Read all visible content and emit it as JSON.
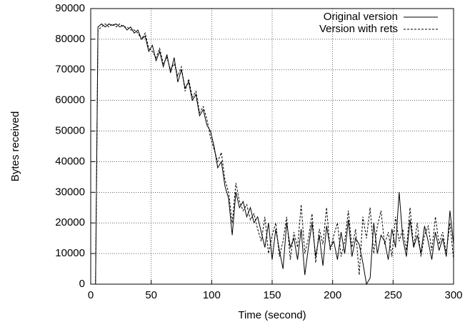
{
  "chart_data": {
    "type": "line",
    "xlabel": "Time (second)",
    "ylabel": "Bytes received",
    "x": [
      3,
      4,
      6,
      9,
      12,
      15,
      18,
      21,
      24,
      27,
      30,
      33,
      36,
      39,
      42,
      45,
      48,
      51,
      54,
      57,
      60,
      63,
      66,
      69,
      72,
      75,
      78,
      81,
      84,
      87,
      90,
      93,
      96,
      99,
      102,
      105,
      108,
      111,
      114,
      117,
      120,
      123,
      126,
      129,
      132,
      135,
      138,
      141,
      144,
      147,
      150,
      153,
      156,
      159,
      162,
      165,
      168,
      171,
      174,
      177,
      180,
      183,
      186,
      189,
      192,
      195,
      198,
      201,
      204,
      207,
      210,
      213,
      216,
      219,
      222,
      225,
      228,
      231,
      234,
      237,
      240,
      243,
      246,
      249,
      252,
      255,
      258,
      261,
      264,
      267,
      270,
      273,
      276,
      279,
      282,
      285,
      288,
      291,
      294,
      297,
      300
    ],
    "series": [
      {
        "name": "Original version",
        "color": "#000000",
        "style": "solid",
        "values": [
          0,
          0,
          84000,
          85000,
          84000,
          85000,
          84500,
          85000,
          84000,
          84500,
          83000,
          84000,
          82000,
          83000,
          80000,
          81000,
          76000,
          78000,
          73000,
          76000,
          71000,
          75000,
          69000,
          74000,
          66000,
          70000,
          64000,
          66000,
          60000,
          62000,
          55000,
          57000,
          52000,
          50000,
          45000,
          38000,
          40000,
          32000,
          28000,
          16000,
          30000,
          25000,
          27000,
          22000,
          25000,
          20000,
          22000,
          17000,
          12000,
          20000,
          8000,
          18000,
          11000,
          5000,
          20000,
          12000,
          15000,
          8000,
          18000,
          3000,
          12000,
          20000,
          9000,
          16000,
          6000,
          19000,
          12000,
          14000,
          8000,
          17000,
          10000,
          21000,
          9000,
          15000,
          13000,
          7000,
          0,
          2000,
          20000,
          10000,
          16000,
          14000,
          8000,
          18000,
          12000,
          30000,
          15000,
          9000,
          21000,
          12000,
          16000,
          10000,
          19000,
          14000,
          8000,
          17000,
          11000,
          15000,
          9000,
          24000,
          13000
        ]
      },
      {
        "name": "Version with rets",
        "color": "#000000",
        "style": "dashed",
        "values": [
          0,
          0,
          83000,
          84000,
          85000,
          84000,
          85000,
          84000,
          85000,
          84000,
          84000,
          83000,
          83000,
          82000,
          80000,
          82000,
          77000,
          76000,
          74000,
          77000,
          72000,
          74000,
          70000,
          72000,
          68000,
          71000,
          63000,
          67000,
          61000,
          63000,
          56000,
          58000,
          54000,
          48000,
          44000,
          40000,
          43000,
          34000,
          30000,
          20000,
          33000,
          27000,
          24000,
          26000,
          21000,
          23000,
          18000,
          14000,
          22000,
          10000,
          16000,
          20000,
          9000,
          14000,
          22000,
          8000,
          17000,
          12000,
          26000,
          10000,
          15000,
          23000,
          7000,
          18000,
          13000,
          25000,
          11000,
          16000,
          20000,
          9000,
          14000,
          24000,
          12000,
          18000,
          3000,
          22000,
          15000,
          25000,
          10000,
          19000,
          24000,
          13000,
          17000,
          9000,
          22000,
          14000,
          18000,
          11000,
          25000,
          12000,
          20000,
          9000,
          16000,
          19000,
          11000,
          22000,
          13000,
          17000,
          10000,
          20000,
          8000
        ]
      }
    ],
    "xlim": [
      0,
      300
    ],
    "xticks": [
      0,
      50,
      100,
      150,
      200,
      250,
      300
    ],
    "ylim": [
      0,
      90000
    ],
    "yticks": [
      0,
      10000,
      20000,
      30000,
      40000,
      50000,
      60000,
      70000,
      80000,
      90000
    ],
    "grid": true,
    "legend": "top-right"
  }
}
